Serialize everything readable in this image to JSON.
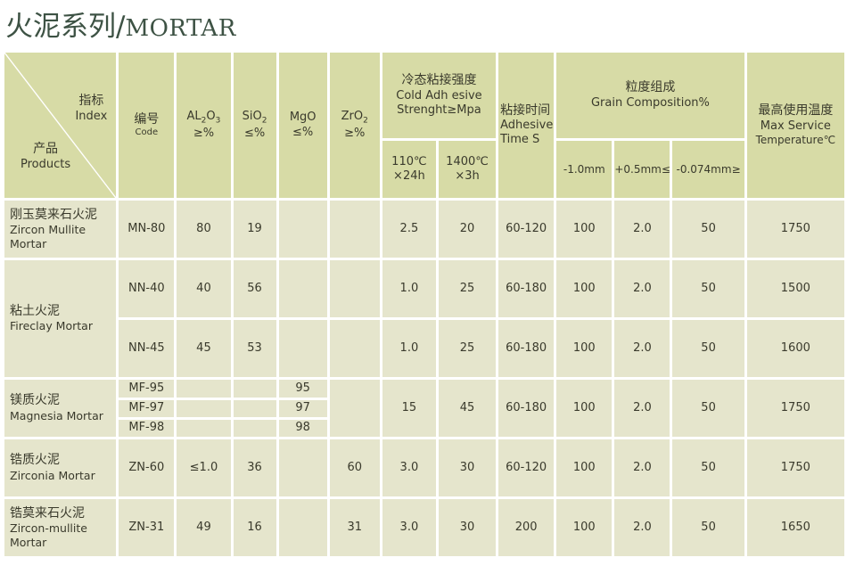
{
  "title": {
    "cn": "火泥系列/",
    "en": "MORTAR"
  },
  "header": {
    "index_cn": "指标",
    "index_en": "Index",
    "product_cn": "产品",
    "product_en": "Products",
    "code_cn": "编号",
    "code_en": "Code",
    "al2o3": "AL2O3",
    "al2o3_unit": "≥%",
    "sio2": "SiO2",
    "sio2_unit": "≤%",
    "mgo": "MgO",
    "mgo_unit": "≤%",
    "zro2": "ZrO2",
    "zro2_unit": "≥%",
    "cold_cn": "冷态粘接强度",
    "cold_en1": "Cold Adh esive",
    "cold_en2": "Strenght≥Mpa",
    "cold_110": "110℃",
    "cold_110_t": "×24h",
    "cold_1400": "1400℃",
    "cold_1400_t": "×3h",
    "adh_cn": "粘接时间",
    "adh_en1": "Adhesive",
    "adh_en2": "Time S",
    "grain_cn": "粒度组成",
    "grain_en": "Grain Composition%",
    "grain_1": "-1.0mm",
    "grain_2": "+0.5mm≤",
    "grain_3": "-0.074mm≥",
    "max_cn": "最高使用温度",
    "max_en1": "Max Service",
    "max_en2": "Temperature℃"
  },
  "rows": {
    "zm": {
      "cn": "刚玉莫来石火泥",
      "en": "Zircon Mullite Mortar",
      "code": "MN-80",
      "al": "80",
      "si": "19",
      "c110": "2.5",
      "c1400": "20",
      "adh": "60-120",
      "g1": "100",
      "g2": "2.0",
      "g3": "50",
      "max": "1750"
    },
    "fc": {
      "cn": "粘土火泥",
      "en": "Fireclay Mortar",
      "a": {
        "code": "NN-40",
        "al": "40",
        "si": "56",
        "c110": "1.0",
        "c1400": "25",
        "adh": "60-180",
        "g1": "100",
        "g2": "2.0",
        "g3": "50",
        "max": "1500"
      },
      "b": {
        "code": "NN-45",
        "al": "45",
        "si": "53",
        "c110": "1.0",
        "c1400": "25",
        "adh": "60-180",
        "g1": "100",
        "g2": "2.0",
        "g3": "50",
        "max": "1600"
      }
    },
    "mg": {
      "cn": "镁质火泥",
      "en": "Magnesia Mortar",
      "codes": [
        "MF-95",
        "MF-97",
        "MF-98"
      ],
      "mgo": [
        "95",
        "97",
        "98"
      ],
      "c110": "15",
      "c1400": "45",
      "adh": "60-180",
      "g1": "100",
      "g2": "2.0",
      "g3": "50",
      "max": "1750"
    },
    "zc": {
      "cn": "锆质火泥",
      "en": "Zirconia Mortar",
      "code": "ZN-60",
      "al": "≤1.0",
      "si": "36",
      "zr": "60",
      "c110": "3.0",
      "c1400": "30",
      "adh": "60-120",
      "g1": "100",
      "g2": "2.0",
      "g3": "50",
      "max": "1750"
    },
    "zcm": {
      "cn": "锆莫来石火泥",
      "en1": "Zircon-mullite",
      "en2": "Mortar",
      "code": "ZN-31",
      "al": "49",
      "si": "16",
      "zr": "31",
      "c110": "3.0",
      "c1400": "30",
      "adh": "200",
      "g1": "100",
      "g2": "2.0",
      "g3": "50",
      "max": "1650"
    }
  }
}
